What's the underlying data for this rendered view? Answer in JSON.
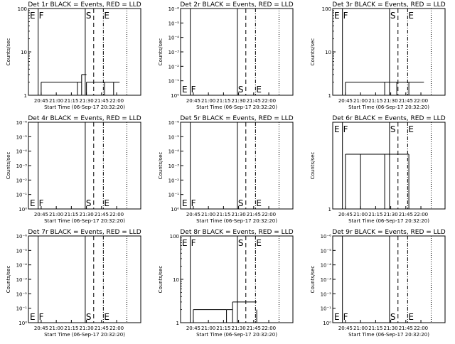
{
  "x_ticks": [
    "20:45",
    "21:00",
    "21:15",
    "21:30",
    "21:45",
    "22:00"
  ],
  "xlabel": "Start Time (06-Sep-17 20:32:20)",
  "ylabel": "Counts/sec",
  "event_letters": [
    "E",
    "F",
    "S",
    "E"
  ],
  "chart_data": [
    {
      "type": "line",
      "title": "Det 1r BLACK = Events, RED = LLD",
      "scale": "log",
      "ylim": [
        1,
        100
      ],
      "y_ticks": [
        "1",
        "10",
        "100"
      ],
      "letters": "top",
      "series": [
        {
          "values": [
            [
              20.75,
              2
            ],
            [
              21.35,
              2
            ],
            [
              21.42,
              3
            ],
            [
              21.5,
              2
            ],
            [
              21.8,
              2
            ],
            [
              21.95,
              2
            ],
            [
              22.05,
              1
            ]
          ]
        }
      ]
    },
    {
      "type": "line",
      "title": "Det 2r BLACK = Events, RED = LLD",
      "scale": "log",
      "ylim": [
        1,
        1.000001
      ],
      "y_ticks": [
        "10⁰",
        "10⁻¹",
        "10⁻²",
        "10⁻³",
        "10⁻⁴",
        "10⁻⁵",
        "10⁻⁶"
      ],
      "letters": "bottom",
      "series": [
        {
          "values": []
        }
      ]
    },
    {
      "type": "line",
      "title": "Det 3r BLACK = Events, RED = LLD",
      "scale": "log",
      "ylim": [
        1,
        100
      ],
      "y_ticks": [
        "1",
        "10",
        "100"
      ],
      "letters": "top",
      "series": [
        {
          "values": [
            [
              20.75,
              2
            ],
            [
              21.4,
              2
            ],
            [
              21.6,
              2
            ],
            [
              21.8,
              2
            ],
            [
              22.05,
              1
            ]
          ]
        }
      ]
    },
    {
      "type": "line",
      "title": "Det 4r BLACK = Events, RED = LLD",
      "scale": "log",
      "ylim": [
        1,
        1.000001
      ],
      "y_ticks": [
        "10⁰",
        "10⁻¹",
        "10⁻²",
        "10⁻³",
        "10⁻⁴",
        "10⁻⁵",
        "10⁻⁶"
      ],
      "letters": "bottom",
      "series": [
        {
          "values": []
        }
      ]
    },
    {
      "type": "line",
      "title": "Det 5r BLACK = Events, RED = LLD",
      "scale": "log",
      "ylim": [
        1,
        1.000001
      ],
      "y_ticks": [
        "10⁰",
        "10⁻¹",
        "10⁻²",
        "10⁻³",
        "10⁻⁴",
        "10⁻⁵",
        "10⁻⁶"
      ],
      "letters": "bottom",
      "series": [
        {
          "values": []
        }
      ]
    },
    {
      "type": "line",
      "title": "Det 6r BLACK = Events, RED = LLD",
      "scale": "log",
      "ylim": [
        1,
        3
      ],
      "y_ticks": [
        "1"
      ],
      "letters": "top",
      "series": [
        {
          "values": [
            [
              20.75,
              2
            ],
            [
              21.0,
              2
            ],
            [
              21.4,
              2
            ],
            [
              21.8,
              2
            ]
          ]
        }
      ]
    },
    {
      "type": "line",
      "title": "Det 7r BLACK = Events, RED = LLD",
      "scale": "log",
      "ylim": [
        1,
        1.000001
      ],
      "y_ticks": [
        "10⁰",
        "10⁻¹",
        "10⁻²",
        "10⁻³",
        "10⁻⁴",
        "10⁻⁵",
        "10⁻⁶"
      ],
      "letters": "bottom",
      "series": [
        {
          "values": []
        }
      ]
    },
    {
      "type": "line",
      "title": "Det 8r BLACK = Events, RED = LLD",
      "scale": "log",
      "ylim": [
        1,
        100
      ],
      "y_ticks": [
        "1",
        "10",
        "100"
      ],
      "letters": "top",
      "series": [
        {
          "values": [
            [
              20.75,
              2
            ],
            [
              21.3,
              2
            ],
            [
              21.4,
              3
            ],
            [
              21.8,
              2
            ]
          ]
        }
      ]
    },
    {
      "type": "line",
      "title": "Det 9r BLACK = Events, RED = LLD",
      "scale": "log",
      "ylim": [
        1,
        1.000001
      ],
      "y_ticks": [
        "10⁰",
        "10⁻¹",
        "10⁻²",
        "10⁻³",
        "10⁻⁴",
        "10⁻⁵",
        "10⁻⁶"
      ],
      "letters": "bottom",
      "series": [
        {
          "values": []
        }
      ]
    }
  ]
}
